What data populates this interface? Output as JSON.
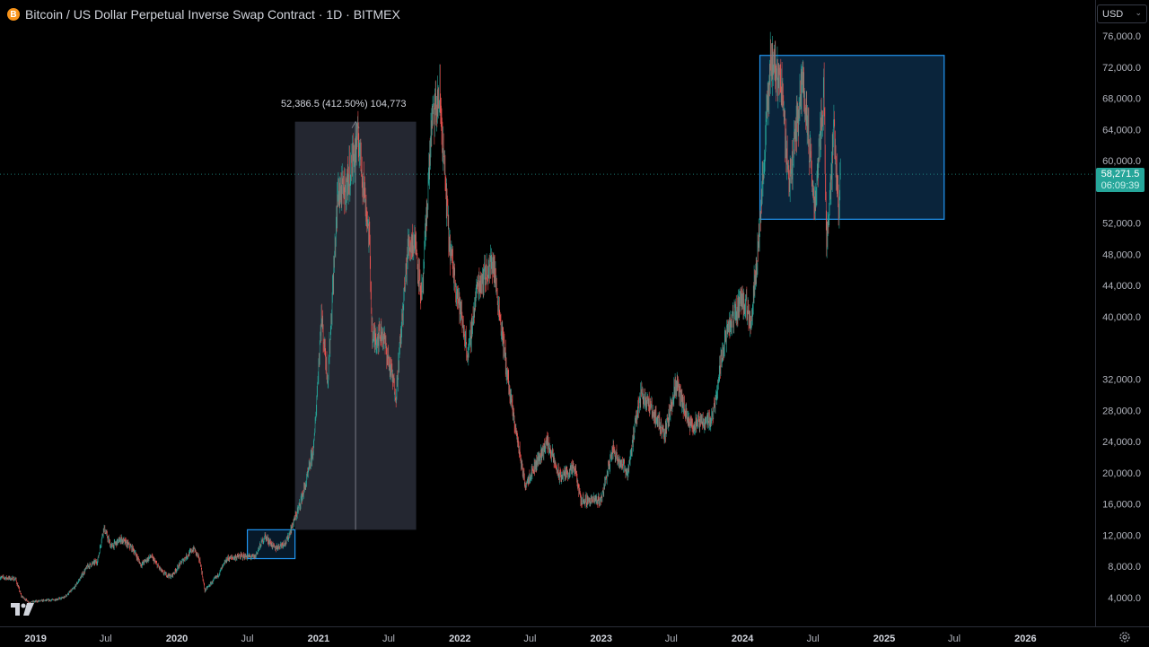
{
  "header": {
    "coin_icon_glyph": "B",
    "title": "Bitcoin / US Dollar Perpetual Inverse Swap Contract · 1D · BITMEX",
    "currency": "USD"
  },
  "price_tag": {
    "price": "58,271.5",
    "countdown": "06:09:39"
  },
  "measure_tool": {
    "label": "52,386.5 (412.50%) 104,773"
  },
  "colors": {
    "background": "#000000",
    "up": "#26a69a",
    "down": "#ef5350",
    "highlight_box_stroke": "#2196f3",
    "highlight_box_fill": "#0c2a45",
    "measure_fill": "#2a2e39",
    "price_tag": "#26a69a"
  },
  "chart_data": {
    "type": "candlestick",
    "title": "Bitcoin / US Dollar Perpetual Inverse Swap Contract · 1D · BITMEX",
    "ylim": [
      2000,
      78000
    ],
    "y_ticks": [
      4000,
      8000,
      12000,
      16000,
      20000,
      24000,
      28000,
      32000,
      36000,
      40000,
      44000,
      48000,
      52000,
      56000,
      60000,
      64000,
      68000,
      72000,
      76000
    ],
    "y_tick_labels": [
      "4,000.0",
      "8,000.0",
      "12,000.0",
      "16,000.0",
      "20,000.0",
      "24,000.0",
      "28,000.0",
      "32,000.0",
      "",
      "40,000.0",
      "44,000.0",
      "48,000.0",
      "52,000.0",
      "",
      "60,000.0",
      "64,000.0",
      "68,000.0",
      "72,000.0",
      "76,000.0"
    ],
    "x_range": [
      "2018-10-01",
      "2026-06-30"
    ],
    "x_ticks": [
      {
        "date": "2019-01-01",
        "label": "2019",
        "bold": true
      },
      {
        "date": "2019-07-01",
        "label": "Jul",
        "bold": false
      },
      {
        "date": "2020-01-01",
        "label": "2020",
        "bold": true
      },
      {
        "date": "2020-07-01",
        "label": "Jul",
        "bold": false
      },
      {
        "date": "2021-01-01",
        "label": "2021",
        "bold": true
      },
      {
        "date": "2021-07-01",
        "label": "Jul",
        "bold": false
      },
      {
        "date": "2022-01-01",
        "label": "2022",
        "bold": true
      },
      {
        "date": "2022-07-01",
        "label": "Jul",
        "bold": false
      },
      {
        "date": "2023-01-01",
        "label": "2023",
        "bold": true
      },
      {
        "date": "2023-07-01",
        "label": "Jul",
        "bold": false
      },
      {
        "date": "2024-01-01",
        "label": "2024",
        "bold": true
      },
      {
        "date": "2024-07-01",
        "label": "Jul",
        "bold": false
      },
      {
        "date": "2025-01-01",
        "label": "2025",
        "bold": true
      },
      {
        "date": "2025-07-01",
        "label": "Jul",
        "bold": false
      },
      {
        "date": "2026-01-01",
        "label": "2026",
        "bold": true
      }
    ],
    "current_price": 58271.5,
    "price_path": [
      [
        "2018-10-01",
        6600
      ],
      [
        "2018-11-10",
        6400
      ],
      [
        "2018-11-25",
        4200
      ],
      [
        "2018-12-15",
        3400
      ],
      [
        "2019-01-15",
        3600
      ],
      [
        "2019-02-15",
        3700
      ],
      [
        "2019-03-15",
        4000
      ],
      [
        "2019-04-10",
        5200
      ],
      [
        "2019-05-15",
        8000
      ],
      [
        "2019-06-10",
        8700
      ],
      [
        "2019-06-26",
        13000
      ],
      [
        "2019-07-15",
        10500
      ],
      [
        "2019-08-10",
        11500
      ],
      [
        "2019-09-10",
        10200
      ],
      [
        "2019-09-30",
        8200
      ],
      [
        "2019-10-26",
        9300
      ],
      [
        "2019-11-25",
        7200
      ],
      [
        "2019-12-17",
        6700
      ],
      [
        "2020-01-15",
        8700
      ],
      [
        "2020-02-14",
        10300
      ],
      [
        "2020-03-01",
        8600
      ],
      [
        "2020-03-13",
        4900
      ],
      [
        "2020-04-15",
        6800
      ],
      [
        "2020-05-10",
        9000
      ],
      [
        "2020-06-15",
        9300
      ],
      [
        "2020-07-20",
        9200
      ],
      [
        "2020-08-15",
        11900
      ],
      [
        "2020-09-10",
        10300
      ],
      [
        "2020-10-10",
        11200
      ],
      [
        "2020-11-10",
        15400
      ],
      [
        "2020-12-01",
        19000
      ],
      [
        "2020-12-20",
        23500
      ],
      [
        "2021-01-08",
        40000
      ],
      [
        "2021-01-25",
        32000
      ],
      [
        "2021-02-20",
        56000
      ],
      [
        "2021-03-10",
        56000
      ],
      [
        "2021-04-14",
        63000
      ],
      [
        "2021-05-12",
        50000
      ],
      [
        "2021-05-20",
        37000
      ],
      [
        "2021-06-15",
        38000
      ],
      [
        "2021-07-20",
        30000
      ],
      [
        "2021-08-20",
        49000
      ],
      [
        "2021-09-07",
        50000
      ],
      [
        "2021-09-25",
        42000
      ],
      [
        "2021-10-20",
        65000
      ],
      [
        "2021-11-10",
        68000
      ],
      [
        "2021-12-05",
        49000
      ],
      [
        "2022-01-22",
        35000
      ],
      [
        "2022-02-15",
        44000
      ],
      [
        "2022-03-28",
        47000
      ],
      [
        "2022-05-10",
        30000
      ],
      [
        "2022-06-18",
        18500
      ],
      [
        "2022-07-15",
        21000
      ],
      [
        "2022-08-15",
        24000
      ],
      [
        "2022-09-15",
        19500
      ],
      [
        "2022-10-25",
        20500
      ],
      [
        "2022-11-09",
        16500
      ],
      [
        "2022-12-31",
        16500
      ],
      [
        "2023-01-31",
        23000
      ],
      [
        "2023-03-10",
        20000
      ],
      [
        "2023-04-14",
        30500
      ],
      [
        "2023-06-15",
        25000
      ],
      [
        "2023-07-13",
        31500
      ],
      [
        "2023-08-17",
        26000
      ],
      [
        "2023-10-15",
        27000
      ],
      [
        "2023-11-15",
        37000
      ],
      [
        "2023-12-31",
        42500
      ],
      [
        "2024-01-23",
        39500
      ],
      [
        "2024-02-15",
        52000
      ],
      [
        "2024-03-14",
        73000
      ],
      [
        "2024-04-10",
        70000
      ],
      [
        "2024-05-01",
        57000
      ],
      [
        "2024-06-05",
        71000
      ],
      [
        "2024-07-05",
        54000
      ],
      [
        "2024-07-29",
        69000
      ],
      [
        "2024-08-05",
        49500
      ],
      [
        "2024-08-25",
        64000
      ],
      [
        "2024-09-06",
        53000
      ],
      [
        "2024-09-10",
        58271.5
      ]
    ]
  },
  "annotations": {
    "measure_box": {
      "start": "2020-11-01",
      "end": "2021-09-10",
      "from_price": 12700,
      "to_price": 65000
    },
    "small_box": {
      "start": "2020-07-01",
      "end": "2020-11-01",
      "low": 9000,
      "high": 12700
    },
    "large_box": {
      "start": "2024-02-15",
      "end": "2025-06-05",
      "low": 52500,
      "high": 73500
    }
  }
}
